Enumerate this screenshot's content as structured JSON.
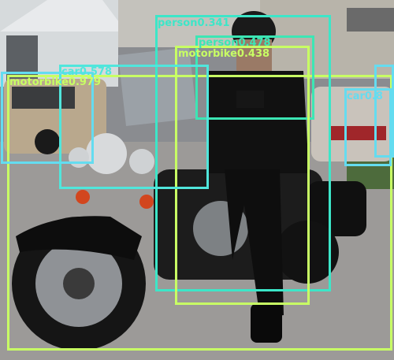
{
  "detections": [
    {
      "label": "motorbike0.979",
      "color": "#c8ff64"
    },
    {
      "label": "person0.341",
      "color": "#3ce6c8"
    },
    {
      "label": "person0.478",
      "color": "#3ce6b4"
    },
    {
      "label": "motorbike0.438",
      "color": "#c8ff64"
    },
    {
      "label": "car0.578",
      "color": "#50e6dc"
    },
    {
      "label": "car0.8",
      "color": "#64dcf0"
    },
    {
      "label": "car",
      "color": "#64dcf0"
    },
    {
      "label": "car",
      "color": "#64dcf0"
    }
  ]
}
